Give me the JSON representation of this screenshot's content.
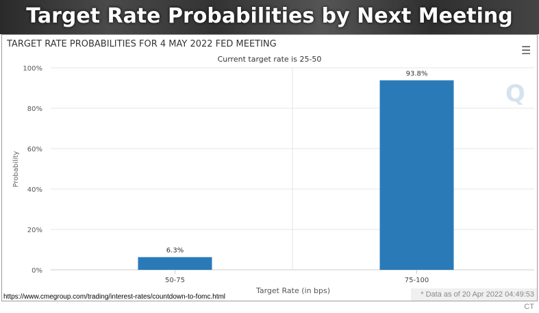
{
  "banner_title": "Target Rate Probabilities by Next Meeting",
  "menu_icon": "hamburger-icon",
  "footer": {
    "url": "https://www.cmegroup.com/trading/interest-rates/countdown-to-fomc.html",
    "as_of": "* Data as of 20 Apr 2022 04:49:53 CT"
  },
  "chart_data": {
    "type": "bar",
    "title": "TARGET RATE PROBABILITIES FOR 4 MAY 2022 FED MEETING",
    "subtitle": "Current target rate is 25-50",
    "categories": [
      "50-75",
      "75-100"
    ],
    "values": [
      6.3,
      93.8
    ],
    "data_labels": [
      "6.3%",
      "93.8%"
    ],
    "xlabel": "Target Rate (in bps)",
    "ylabel": "Probability",
    "ylim": [
      0,
      100
    ],
    "yticks": [
      "0%",
      "20%",
      "40%",
      "60%",
      "80%",
      "100%"
    ],
    "bar_color": "#2a7ab8",
    "grid": true
  }
}
